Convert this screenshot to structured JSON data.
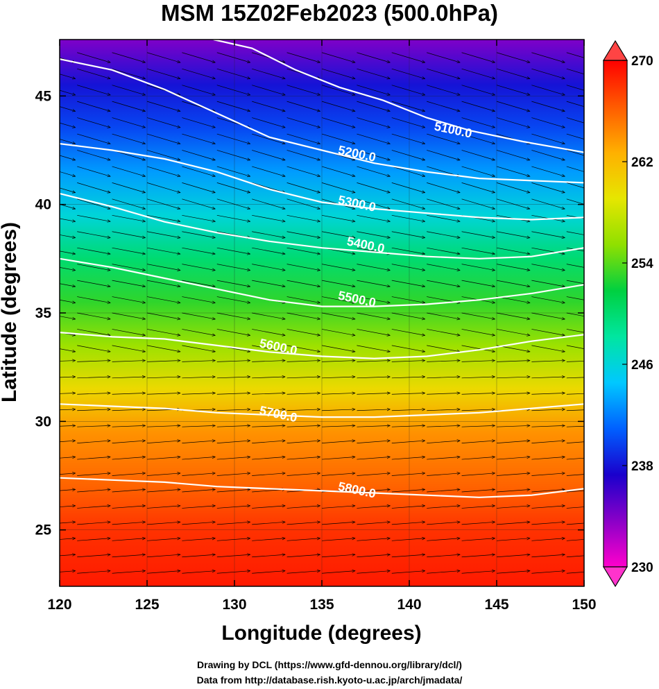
{
  "title": "MSM 15Z02Feb2023 (500.0hPa)",
  "credits": {
    "line1": "Drawing by DCL (https://www.gfd-dennou.org/library/dcl/)",
    "line2": "Data from http://database.rish.kyoto-u.ac.jp/arch/jmadata/"
  },
  "chart_data": {
    "type": "heatmap",
    "xlabel": "Longitude (degrees)",
    "ylabel": "Latitude  (degrees)",
    "xlim": [
      120,
      150
    ],
    "ylim": [
      22.4,
      47.6
    ],
    "x_ticks": [
      120,
      125,
      130,
      135,
      140,
      145,
      150
    ],
    "y_ticks": [
      25,
      30,
      35,
      40,
      45
    ],
    "colorbar": {
      "ticks": [
        230,
        238,
        246,
        254,
        262,
        270
      ],
      "range": [
        230,
        270
      ],
      "extend": "both",
      "colors": [
        "#ff00cc",
        "#8a00c8",
        "#1a00cc",
        "#0060ff",
        "#00c8ff",
        "#00e6a0",
        "#00d040",
        "#90e000",
        "#e6e600",
        "#ffb000",
        "#ff5a00",
        "#ff0000"
      ]
    },
    "field_bands": [
      {
        "lat": 47.6,
        "value": 234
      },
      {
        "lat": 45.5,
        "value": 238
      },
      {
        "lat": 43.5,
        "value": 240
      },
      {
        "lat": 41.5,
        "value": 243
      },
      {
        "lat": 39.5,
        "value": 246
      },
      {
        "lat": 37.5,
        "value": 250
      },
      {
        "lat": 35.5,
        "value": 253
      },
      {
        "lat": 33.5,
        "value": 256
      },
      {
        "lat": 31.5,
        "value": 260
      },
      {
        "lat": 29.5,
        "value": 264
      },
      {
        "lat": 27.0,
        "value": 266
      },
      {
        "lat": 25.0,
        "value": 268
      },
      {
        "lat": 22.4,
        "value": 269
      }
    ],
    "contours": [
      {
        "label": "5100.0",
        "points": [
          [
            128.8,
            47.6
          ],
          [
            131.0,
            47.2
          ],
          [
            133.5,
            46.2
          ],
          [
            136.0,
            45.4
          ],
          [
            138.5,
            44.8
          ],
          [
            141.0,
            44.0
          ],
          [
            143.5,
            43.4
          ],
          [
            146.5,
            42.9
          ],
          [
            150.0,
            42.4
          ]
        ],
        "label_at": [
          142.5,
          43.4
        ]
      },
      {
        "label": "5200.0",
        "points": [
          [
            120.0,
            46.7
          ],
          [
            123.0,
            46.2
          ],
          [
            126.0,
            45.3
          ],
          [
            129.0,
            44.2
          ],
          [
            132.0,
            43.1
          ],
          [
            135.0,
            42.5
          ],
          [
            138.0,
            41.9
          ],
          [
            141.0,
            41.5
          ],
          [
            144.0,
            41.2
          ],
          [
            147.0,
            41.1
          ],
          [
            150.0,
            41.0
          ]
        ],
        "label_at": [
          137.0,
          42.3
        ]
      },
      {
        "label": "5300.0",
        "points": [
          [
            120.0,
            42.8
          ],
          [
            123.0,
            42.5
          ],
          [
            126.0,
            42.1
          ],
          [
            129.0,
            41.5
          ],
          [
            132.0,
            40.7
          ],
          [
            135.0,
            40.1
          ],
          [
            138.0,
            39.8
          ],
          [
            141.0,
            39.6
          ],
          [
            144.0,
            39.4
          ],
          [
            147.0,
            39.3
          ],
          [
            150.0,
            39.4
          ]
        ],
        "label_at": [
          137.0,
          40.0
        ]
      },
      {
        "label": "5400.0",
        "points": [
          [
            120.0,
            40.5
          ],
          [
            123.0,
            39.9
          ],
          [
            126.0,
            39.2
          ],
          [
            129.0,
            38.7
          ],
          [
            132.0,
            38.3
          ],
          [
            135.0,
            38.0
          ],
          [
            138.0,
            37.8
          ],
          [
            141.0,
            37.6
          ],
          [
            144.0,
            37.5
          ],
          [
            147.0,
            37.6
          ],
          [
            150.0,
            38.0
          ]
        ],
        "label_at": [
          137.5,
          38.1
        ]
      },
      {
        "label": "5500.0",
        "points": [
          [
            120.0,
            37.5
          ],
          [
            123.0,
            37.1
          ],
          [
            126.0,
            36.6
          ],
          [
            129.0,
            36.1
          ],
          [
            132.0,
            35.6
          ],
          [
            135.0,
            35.3
          ],
          [
            138.0,
            35.3
          ],
          [
            141.0,
            35.4
          ],
          [
            144.0,
            35.6
          ],
          [
            147.0,
            35.9
          ],
          [
            150.0,
            36.3
          ]
        ],
        "label_at": [
          137.0,
          35.6
        ]
      },
      {
        "label": "5600.0",
        "points": [
          [
            120.0,
            34.1
          ],
          [
            123.0,
            33.9
          ],
          [
            126.0,
            33.8
          ],
          [
            129.0,
            33.5
          ],
          [
            132.0,
            33.2
          ],
          [
            135.0,
            33.0
          ],
          [
            138.0,
            32.9
          ],
          [
            141.0,
            33.0
          ],
          [
            144.0,
            33.3
          ],
          [
            147.0,
            33.7
          ],
          [
            150.0,
            34.0
          ]
        ],
        "label_at": [
          132.5,
          33.4
        ]
      },
      {
        "label": "5700.0",
        "points": [
          [
            120.0,
            30.8
          ],
          [
            123.0,
            30.7
          ],
          [
            126.0,
            30.6
          ],
          [
            129.0,
            30.4
          ],
          [
            132.0,
            30.3
          ],
          [
            135.0,
            30.2
          ],
          [
            138.0,
            30.2
          ],
          [
            141.0,
            30.3
          ],
          [
            144.0,
            30.4
          ],
          [
            147.0,
            30.6
          ],
          [
            150.0,
            30.8
          ]
        ],
        "label_at": [
          132.5,
          30.3
        ]
      },
      {
        "label": "5800.0",
        "points": [
          [
            120.0,
            27.4
          ],
          [
            123.0,
            27.3
          ],
          [
            126.0,
            27.2
          ],
          [
            129.0,
            27.0
          ],
          [
            132.0,
            26.9
          ],
          [
            135.0,
            26.8
          ],
          [
            138.0,
            26.7
          ],
          [
            141.0,
            26.6
          ],
          [
            144.0,
            26.5
          ],
          [
            147.0,
            26.6
          ],
          [
            150.0,
            26.9
          ]
        ],
        "label_at": [
          137.0,
          26.8
        ]
      }
    ]
  }
}
